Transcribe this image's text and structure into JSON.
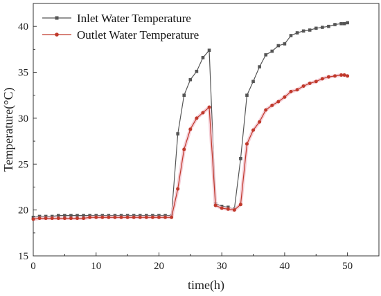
{
  "chart_data": {
    "type": "line",
    "title": "",
    "xlabel": "time(h)",
    "ylabel": "Temperature(°C)",
    "xlim": [
      0,
      55
    ],
    "ylim": [
      15,
      42.5
    ],
    "x_ticks": [
      0,
      10,
      20,
      30,
      40,
      50
    ],
    "y_ticks": [
      15,
      20,
      25,
      30,
      35,
      40
    ],
    "legend_position": "top-left",
    "grid": false,
    "series": [
      {
        "name": "Inlet Water Temperature",
        "color": "#555555",
        "marker": "square",
        "x": [
          0,
          1,
          2,
          3,
          4,
          5,
          6,
          7,
          8,
          9,
          10,
          11,
          12,
          13,
          14,
          15,
          16,
          17,
          18,
          19,
          20,
          21,
          22,
          23,
          24,
          25,
          26,
          27,
          28,
          29,
          30,
          31,
          32,
          33,
          34,
          35,
          36,
          37,
          38,
          39,
          40,
          41,
          42,
          43,
          44,
          45,
          46,
          47,
          48,
          49,
          49.5,
          50
        ],
        "y": [
          19.2,
          19.3,
          19.3,
          19.3,
          19.4,
          19.4,
          19.4,
          19.4,
          19.4,
          19.4,
          19.4,
          19.4,
          19.4,
          19.4,
          19.4,
          19.4,
          19.4,
          19.4,
          19.4,
          19.4,
          19.4,
          19.4,
          19.4,
          28.3,
          32.5,
          34.2,
          35.1,
          36.6,
          37.4,
          20.7,
          20.4,
          20.3,
          20.1,
          25.6,
          32.5,
          34.0,
          35.6,
          36.9,
          37.3,
          37.9,
          38.1,
          39.0,
          39.3,
          39.5,
          39.6,
          39.8,
          39.9,
          40.0,
          40.2,
          40.3,
          40.3,
          40.4
        ]
      },
      {
        "name": "Outlet Water Temperature",
        "color": "#c0392b",
        "marker": "circle",
        "x": [
          0,
          1,
          2,
          3,
          4,
          5,
          6,
          7,
          8,
          9,
          10,
          11,
          12,
          13,
          14,
          15,
          16,
          17,
          18,
          19,
          20,
          21,
          22,
          23,
          24,
          25,
          26,
          27,
          28,
          29,
          30,
          31,
          32,
          33,
          34,
          35,
          36,
          37,
          38,
          39,
          40,
          41,
          42,
          43,
          44,
          45,
          46,
          47,
          48,
          49,
          49.5,
          50
        ],
        "y": [
          19.0,
          19.1,
          19.1,
          19.1,
          19.1,
          19.1,
          19.1,
          19.1,
          19.1,
          19.2,
          19.2,
          19.2,
          19.2,
          19.2,
          19.2,
          19.2,
          19.2,
          19.2,
          19.2,
          19.2,
          19.2,
          19.2,
          19.2,
          22.3,
          26.6,
          28.8,
          30.0,
          30.6,
          31.2,
          20.5,
          20.2,
          20.1,
          20.0,
          20.6,
          27.2,
          28.7,
          29.6,
          30.9,
          31.4,
          31.8,
          32.3,
          32.9,
          33.1,
          33.5,
          33.8,
          34.0,
          34.3,
          34.5,
          34.6,
          34.7,
          34.7,
          34.6
        ]
      }
    ]
  }
}
